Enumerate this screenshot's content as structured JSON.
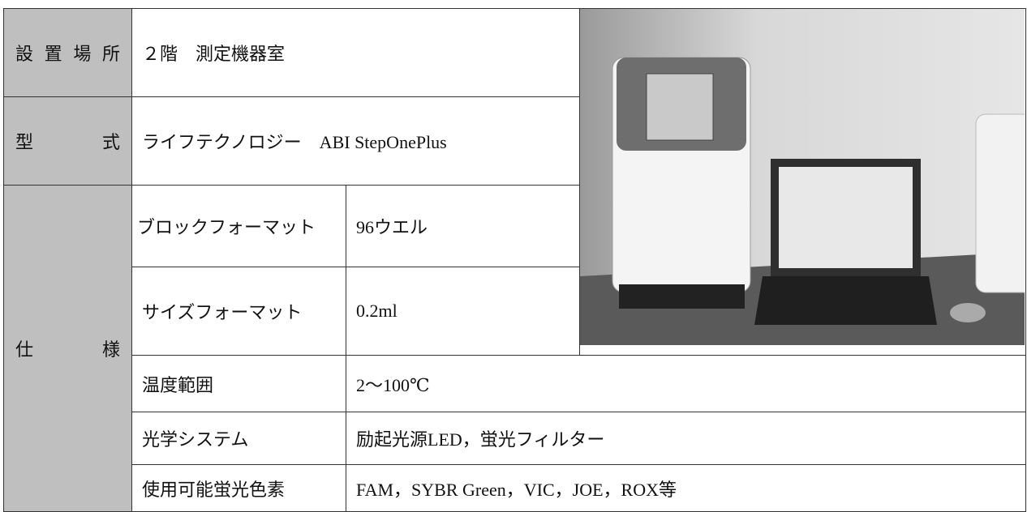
{
  "table": {
    "rows": [
      {
        "label": "設置場所",
        "value": "２階　測定機器室"
      },
      {
        "label": "型　式",
        "value": "ライフテクノロジー　ABI StepOnePlus"
      }
    ],
    "spec": {
      "label": "仕　様",
      "items": [
        {
          "name": "ブロックフォーマット",
          "value": "96ウエル"
        },
        {
          "name": "サイズフォーマット",
          "value": "0.2ml"
        },
        {
          "name": "温度範囲",
          "value": "2～100℃"
        },
        {
          "name": "光学システム",
          "value": "励起光源LED，蛍光フィルター"
        },
        {
          "name": "使用可能蛍光色素",
          "value": "FAM，SYBR Green，VIC，JOE，ROX等"
        }
      ]
    }
  }
}
